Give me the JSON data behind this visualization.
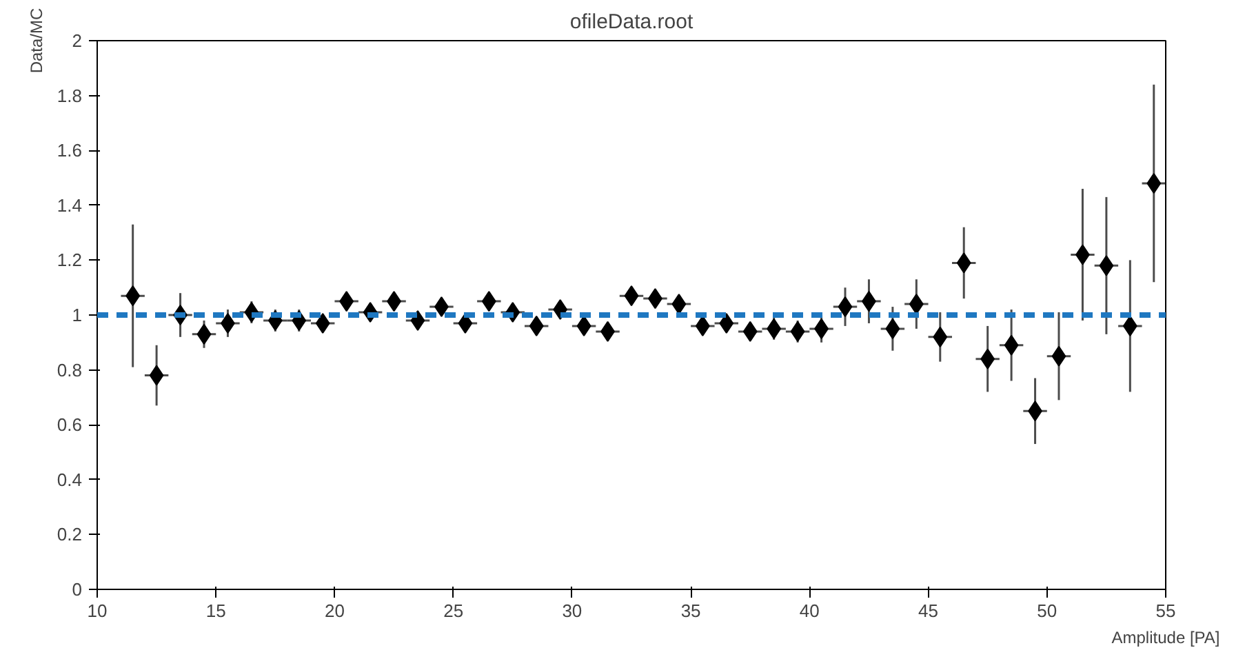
{
  "chart_data": {
    "type": "scatter",
    "title": "ofileData.root",
    "xlabel": "Amplitude [PA]",
    "ylabel": "Data/MC",
    "x": [
      11.5,
      12.5,
      13.5,
      14.5,
      15.5,
      16.5,
      17.5,
      18.5,
      19.5,
      20.5,
      21.5,
      22.5,
      23.5,
      24.5,
      25.5,
      26.5,
      27.5,
      28.5,
      29.5,
      30.5,
      31.5,
      32.5,
      33.5,
      34.5,
      35.5,
      36.5,
      37.5,
      38.5,
      39.5,
      40.5,
      41.5,
      42.5,
      43.5,
      44.5,
      45.5,
      46.5,
      47.5,
      48.5,
      49.5,
      50.5,
      51.5,
      52.5,
      53.5,
      54.5
    ],
    "series": [
      {
        "color": "#000000",
        "values": [
          1.07,
          0.78,
          1.0,
          0.93,
          0.97,
          1.01,
          0.98,
          0.98,
          0.97,
          1.05,
          1.01,
          1.05,
          0.98,
          1.03,
          0.97,
          1.05,
          1.01,
          0.96,
          1.02,
          0.96,
          0.94,
          1.07,
          1.06,
          1.04,
          0.96,
          0.97,
          0.94,
          0.95,
          0.94,
          0.95,
          1.03,
          1.05,
          0.95,
          1.04,
          0.92,
          1.19,
          0.84,
          0.89,
          0.65,
          0.85,
          1.22,
          1.18,
          0.96,
          1.48
        ],
        "errors": [
          0.26,
          0.11,
          0.08,
          0.05,
          0.05,
          0.04,
          0.04,
          0.04,
          0.03,
          0.03,
          0.03,
          0.03,
          0.03,
          0.03,
          0.03,
          0.03,
          0.03,
          0.03,
          0.03,
          0.03,
          0.03,
          0.03,
          0.03,
          0.03,
          0.03,
          0.03,
          0.03,
          0.04,
          0.04,
          0.05,
          0.07,
          0.08,
          0.08,
          0.09,
          0.09,
          0.13,
          0.12,
          0.13,
          0.12,
          0.16,
          0.24,
          0.25,
          0.24,
          0.36
        ],
        "xerrors": [
          0.5,
          0.5,
          0.5,
          0.5,
          0.5,
          0.5,
          0.5,
          0.5,
          0.5,
          0.5,
          0.5,
          0.5,
          0.5,
          0.5,
          0.5,
          0.5,
          0.5,
          0.5,
          0.5,
          0.5,
          0.5,
          0.5,
          0.5,
          0.5,
          0.5,
          0.5,
          0.5,
          0.5,
          0.5,
          0.5,
          0.5,
          0.5,
          0.5,
          0.5,
          0.5,
          0.5,
          0.5,
          0.5,
          0.5,
          0.5,
          0.5,
          0.5,
          0.5,
          0.5
        ]
      }
    ],
    "marker": "diamond",
    "xlim": [
      10,
      55
    ],
    "ylim": [
      0,
      2
    ],
    "xticks": [
      10,
      15,
      20,
      25,
      30,
      35,
      40,
      45,
      50,
      55
    ],
    "yticks": [
      0,
      0.2,
      0.4,
      0.6,
      0.8,
      1,
      1.2,
      1.4,
      1.6,
      1.8,
      2
    ],
    "ref_lines": [
      {
        "axis": "y",
        "value": 1,
        "color": "#1f78c1",
        "line_style": "dashed"
      }
    ],
    "grid": false
  }
}
